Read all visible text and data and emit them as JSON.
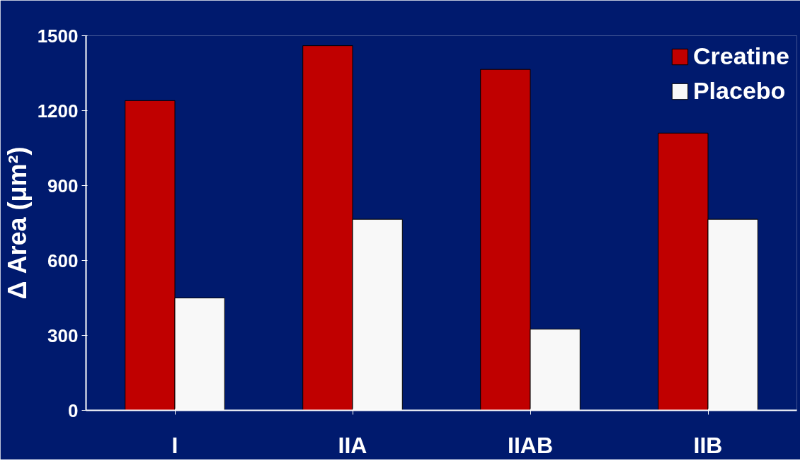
{
  "chart_data": {
    "type": "bar",
    "ylabel": "Δ Area (μm²)",
    "categories": [
      "I",
      "IIA",
      "IIAB",
      "IIB"
    ],
    "series": [
      {
        "name": "Creatine",
        "color": "#c00000",
        "values": [
          1240,
          1460,
          1365,
          1110
        ]
      },
      {
        "name": "Placebo",
        "color": "#f8f8f8",
        "values": [
          450,
          765,
          325,
          765
        ]
      }
    ],
    "ylim": [
      0,
      1500
    ],
    "yticks": [
      0,
      300,
      600,
      900,
      1200,
      1500
    ],
    "grid": false,
    "legend": "top right"
  }
}
